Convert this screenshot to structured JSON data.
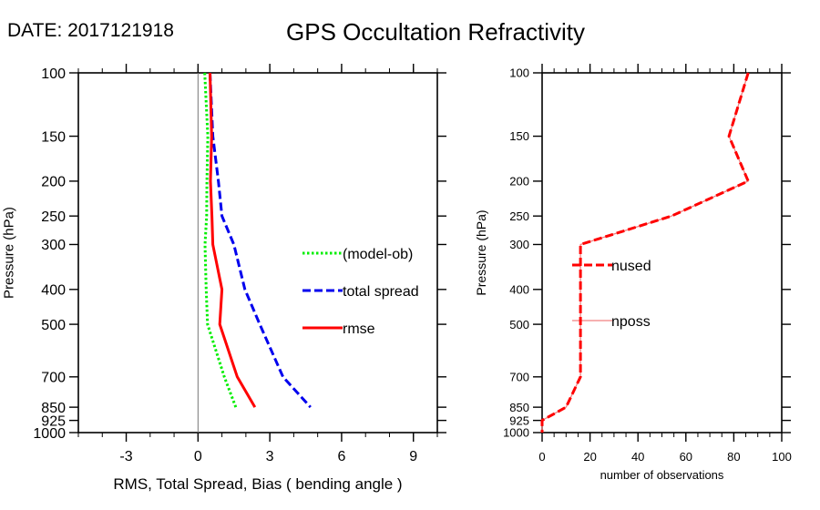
{
  "header": {
    "date_label": "DATE: 2017121918",
    "title": "GPS Occultation Refractivity"
  },
  "chart_data": [
    {
      "type": "line",
      "name": "left-panel",
      "xlabel": "RMS, Total Spread, Bias ( bending angle )",
      "ylabel": "Pressure (hPa)",
      "xlim": [
        -5,
        10
      ],
      "ylim": [
        1000,
        100
      ],
      "yscale": "log",
      "x_ticks": [
        -3,
        0,
        3,
        6,
        9
      ],
      "x_tick_labels": [
        "-3",
        "0",
        "3",
        "6",
        "9"
      ],
      "x_minor_step": 1,
      "y_ticks": [
        100,
        150,
        200,
        250,
        300,
        400,
        500,
        700,
        850,
        925,
        1000
      ],
      "y_tick_labels": [
        "100",
        "150",
        "200",
        "250",
        "300",
        "400",
        "500",
        "700",
        "850",
        "925",
        "1000"
      ],
      "zero_line": 0,
      "legend_placement": "right-middle",
      "levels": [
        100,
        150,
        200,
        250,
        300,
        400,
        500,
        700,
        850
      ],
      "series": [
        {
          "name": "(model-ob)",
          "color": "#00ee00",
          "style": "dotted",
          "values": [
            0.28,
            0.41,
            0.37,
            0.36,
            0.29,
            0.34,
            0.4,
            1.1,
            1.58
          ]
        },
        {
          "name": "total spread",
          "color": "#0000ee",
          "style": "dashed",
          "values": [
            0.5,
            0.62,
            0.85,
            1.0,
            1.5,
            1.96,
            2.58,
            3.55,
            4.7
          ]
        },
        {
          "name": "rmse",
          "color": "#ff0000",
          "style": "solid",
          "values": [
            0.5,
            0.57,
            0.52,
            0.58,
            0.62,
            1.0,
            0.91,
            1.64,
            2.38
          ]
        }
      ]
    },
    {
      "type": "line",
      "name": "right-panel",
      "xlabel": "number of observations",
      "ylabel": "Pressure (hPa)",
      "xlim": [
        0,
        100
      ],
      "ylim": [
        1000,
        100
      ],
      "yscale": "log",
      "x_ticks": [
        0,
        20,
        40,
        60,
        80,
        100
      ],
      "x_tick_labels": [
        "0",
        "20",
        "40",
        "60",
        "80",
        "100"
      ],
      "x_minor_step": 5,
      "y_ticks": [
        100,
        150,
        200,
        250,
        300,
        400,
        500,
        700,
        850,
        925,
        1000
      ],
      "y_tick_labels": [
        "100",
        "150",
        "200",
        "250",
        "300",
        "400",
        "500",
        "700",
        "850",
        "925",
        "1000"
      ],
      "legend_placement": "left-middle",
      "levels": [
        100,
        150,
        200,
        250,
        300,
        400,
        500,
        700,
        850,
        925,
        1000
      ],
      "series": [
        {
          "name": "nposs",
          "color": "#f08080",
          "style": "solid-thin",
          "values": [
            86,
            78,
            86,
            54,
            16,
            16,
            16,
            16,
            10,
            0,
            0
          ]
        },
        {
          "name": "nused",
          "color": "#ff0000",
          "style": "dashed",
          "values": [
            86,
            78,
            86,
            54,
            16,
            16,
            16,
            16,
            10,
            0,
            0
          ]
        }
      ]
    }
  ]
}
